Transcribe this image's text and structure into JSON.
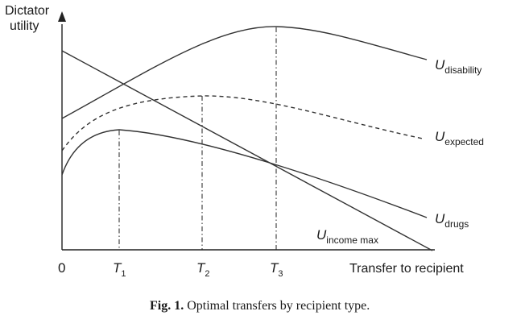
{
  "chart_data": {
    "type": "line",
    "ylabel_line1": "Dictator",
    "ylabel_line2": "utility",
    "xlabel": "Transfer to recipient",
    "origin_label": "0",
    "ticks": [
      {
        "main": "T",
        "sub": "1"
      },
      {
        "main": "T",
        "sub": "2"
      },
      {
        "main": "T",
        "sub": "3"
      }
    ],
    "series": [
      {
        "main": "U",
        "sub": "disability",
        "style": "solid"
      },
      {
        "main": "U",
        "sub": "expected",
        "style": "dashed"
      },
      {
        "main": "U",
        "sub": "drugs",
        "style": "solid"
      },
      {
        "main": "U",
        "sub": "income max",
        "style": "solid"
      }
    ],
    "caption_bold": "Fig. 1.",
    "caption_text": " Optimal transfers by recipient type.",
    "grid": false,
    "legend": "labels placed at line ends"
  }
}
